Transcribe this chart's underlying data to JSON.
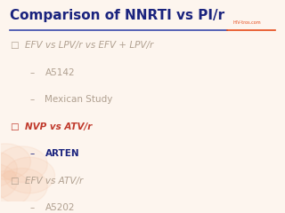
{
  "title": "Comparison of NNRTI vs PI/r",
  "title_color": "#1a237e",
  "bg_color": "#fdf5ee",
  "separator_color_blue": "#3949ab",
  "separator_color_orange": "#e64a19",
  "bullet_color_faded": "#b0a090",
  "bullet_color_active": "#1a237e",
  "items": [
    {
      "level": 0,
      "text": "EFV vs LPV/r vs EFV + LPV/r",
      "color": "#b0a090",
      "bold": false,
      "italic": true,
      "bullet": "□"
    },
    {
      "level": 1,
      "text": "A5142",
      "color": "#b0a090",
      "bold": false,
      "italic": false,
      "bullet": "–"
    },
    {
      "level": 1,
      "text": "Mexican Study",
      "color": "#b0a090",
      "bold": false,
      "italic": false,
      "bullet": "–"
    },
    {
      "level": 0,
      "text": "NVP vs ATV/r",
      "color": "#c0392b",
      "bold": true,
      "italic": true,
      "bullet": "□"
    },
    {
      "level": 1,
      "text": "ARTEN",
      "color": "#1a237e",
      "bold": true,
      "italic": false,
      "bullet": "–"
    },
    {
      "level": 0,
      "text": "EFV vs ATV/r",
      "color": "#b0a090",
      "bold": false,
      "italic": true,
      "bullet": "□"
    },
    {
      "level": 1,
      "text": "A5202",
      "color": "#b0a090",
      "bold": false,
      "italic": false,
      "bullet": "–"
    }
  ]
}
